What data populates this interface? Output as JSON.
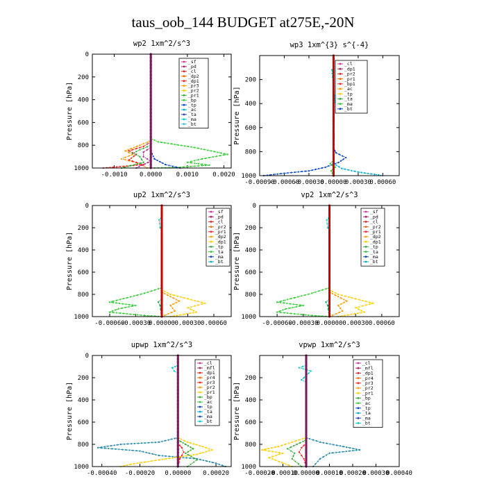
{
  "page_title": "taus_oob_144  BUDGET at275E,-20N",
  "chart_data": [
    {
      "type": "line",
      "title": "wp2  1xm^2/s^3",
      "ylabel": "Pressure [hPa]",
      "xlim": [
        -0.0016,
        0.0022
      ],
      "ylim": [
        1000,
        0
      ],
      "xticks": [
        -0.001,
        0.0,
        0.001,
        0.002
      ],
      "xticklabels": [
        "-0.0010",
        "0.0000",
        "0.0010",
        "0.0020"
      ],
      "yticks": [
        0,
        200,
        400,
        600,
        800,
        1000
      ],
      "legend": [
        "_sf",
        "_pd",
        "_cl",
        "_dp2",
        "_dp1",
        "_pr3",
        "_pr2",
        "_pr1",
        "_bp",
        "_tp",
        "_ac",
        "_ta",
        "_ma",
        "_bt"
      ],
      "series": [
        {
          "name": "_bp",
          "color": "#33cc33",
          "x": [
            0,
            0,
            0.0002,
            0.0012,
            0.0021,
            0.0014,
            0.001,
            0.0016,
            0.0007,
            0.0001
          ],
          "y": [
            0,
            740,
            770,
            820,
            880,
            920,
            950,
            975,
            995,
            1000
          ]
        },
        {
          "name": "_dp2",
          "color": "#ff9900",
          "x": [
            0,
            0,
            -0.0003,
            -0.0007,
            -0.0005,
            -0.0008,
            -0.0003,
            -0.0001
          ],
          "y": [
            0,
            760,
            800,
            850,
            880,
            920,
            960,
            1000
          ]
        },
        {
          "name": "_dp1",
          "color": "#ff2222",
          "x": [
            0,
            0,
            -0.0002,
            -0.0006,
            -0.0004,
            -0.0006,
            -0.0002,
            -0.0013
          ],
          "y": [
            0,
            770,
            810,
            850,
            880,
            930,
            970,
            1000
          ]
        },
        {
          "name": "_pr1",
          "color": "#33aa33",
          "x": [
            0,
            0,
            -0.0003,
            -0.0005,
            -0.0003,
            -0.0002,
            -0.0008
          ],
          "y": [
            0,
            800,
            840,
            870,
            900,
            950,
            1000
          ]
        },
        {
          "name": "_cl",
          "color": "#aa3399",
          "x": [
            0,
            0,
            -0.0002,
            -0.0002,
            0,
            -0.0004
          ],
          "y": [
            0,
            820,
            860,
            900,
            940,
            1000
          ]
        },
        {
          "name": "_tp",
          "color": "#0044cc",
          "x": [
            0,
            0,
            0.0001,
            0.0004,
            0.0008
          ],
          "y": [
            0,
            850,
            920,
            970,
            1000
          ]
        },
        {
          "name": "_bt",
          "color": "#7a1a5a",
          "x": [
            0,
            0
          ],
          "y": [
            0,
            1000
          ]
        }
      ]
    },
    {
      "type": "line",
      "title": "wp3  1xm^{3} s^{-4}",
      "ylabel": "Pressure [hPa]",
      "xlim": [
        -0.0009,
        0.0008
      ],
      "ylim": [
        1000,
        0
      ],
      "xticks": [
        -0.0009,
        -0.0006,
        -0.0003,
        0.0,
        0.0003,
        0.0006
      ],
      "xticklabels": [
        "-0.00090",
        "-0.00060",
        "-0.00030",
        "0.00000",
        "0.00030",
        "0.00060"
      ],
      "yticks": [
        200,
        400,
        600,
        800,
        1000
      ],
      "legend": [
        "_cl",
        "_dp1",
        "_pr2",
        "_pr1",
        "_bp1",
        "_ac",
        "_tp",
        "_ta",
        "_ma",
        "_bt"
      ],
      "series": [
        {
          "name": "_tp",
          "color": "#0044cc",
          "x": [
            0,
            0,
            3e-05,
            0.00015,
            6e-05,
            -0.0001,
            -0.0003,
            -0.0006,
            -0.00085
          ],
          "y": [
            0,
            770,
            810,
            850,
            890,
            930,
            960,
            980,
            1000
          ]
        },
        {
          "name": "_ac",
          "color": "#00aacc",
          "x": [
            0,
            0,
            0.0001,
            0.0003,
            0.0005,
            0.0006
          ],
          "y": [
            0,
            900,
            940,
            970,
            990,
            1000
          ]
        },
        {
          "name": "_bp1",
          "color": "#33cc33",
          "x": [
            0,
            0,
            -4e-05,
            2e-05,
            -3e-05,
            0
          ],
          "y": [
            0,
            870,
            900,
            930,
            960,
            1000
          ]
        },
        {
          "name": "_ma",
          "color": "#00cccc",
          "x": [
            0,
            0,
            -2e-05,
            2e-05,
            0
          ],
          "y": [
            100,
            110,
            120,
            390,
            400
          ]
        },
        {
          "name": "_bt",
          "color": "#cc0000",
          "x": [
            0,
            0
          ],
          "y": [
            0,
            1000
          ]
        }
      ]
    },
    {
      "type": "line",
      "title": "up2  1xm^2/s^3",
      "ylabel": "Pressure [hPa]",
      "xlim": [
        -0.0008,
        0.0008
      ],
      "ylim": [
        1000,
        0
      ],
      "xticks": [
        -0.0006,
        -0.0003,
        0.0,
        0.0003,
        0.0006
      ],
      "xticklabels": [
        "-0.00060",
        "-0.00030",
        "0.00000",
        "0.00030",
        "0.00060"
      ],
      "yticks": [
        0,
        200,
        400,
        600,
        800,
        1000
      ],
      "legend": [
        "_sf",
        "_pd",
        "_cl",
        "_pr2",
        "_pr1",
        "_dp2",
        "_dp1",
        "_tp",
        "_ta",
        "_ma",
        "_bt"
      ],
      "series": [
        {
          "name": "_dp2",
          "color": "#33cc33",
          "x": [
            0,
            0,
            -0.0002,
            -0.0004,
            -0.0006,
            -0.0003,
            -0.0005,
            -0.0006,
            -0.0002,
            0
          ],
          "y": [
            0,
            740,
            790,
            830,
            870,
            900,
            930,
            960,
            990,
            1000
          ]
        },
        {
          "name": "_pr2",
          "color": "#ffcc00",
          "x": [
            0,
            0,
            0.0001,
            0.0003,
            0.0005,
            0.0003,
            0.0004,
            0.0001
          ],
          "y": [
            0,
            760,
            800,
            840,
            880,
            920,
            960,
            1000
          ]
        },
        {
          "name": "_pr1",
          "color": "#ff9900",
          "x": [
            0,
            0,
            0.0001,
            0.0002,
            0.0001,
            0.00015,
            0
          ],
          "y": [
            0,
            780,
            820,
            860,
            900,
            950,
            1000
          ]
        },
        {
          "name": "_cl",
          "color": "#00aa66",
          "x": [
            0,
            0,
            -4e-05,
            -2e-05,
            0
          ],
          "y": [
            0,
            840,
            870,
            900,
            1000
          ]
        },
        {
          "name": "_ma",
          "color": "#00cccc",
          "x": [
            0,
            0,
            -3e-05,
            -2e-05,
            0
          ],
          "y": [
            0,
            100,
            130,
            200,
            220
          ]
        },
        {
          "name": "_bt",
          "color": "#cc0000",
          "x": [
            0,
            0
          ],
          "y": [
            0,
            1000
          ]
        }
      ]
    },
    {
      "type": "line",
      "title": "vp2  1xm^2/s^3",
      "ylabel": "Pressure [hPa]",
      "xlim": [
        -0.0008,
        0.0008
      ],
      "ylim": [
        1000,
        0
      ],
      "xticks": [
        -0.0006,
        -0.0003,
        0.0,
        0.0003,
        0.0006
      ],
      "xticklabels": [
        "-0.00060",
        "-0.00030",
        "0.00000",
        "0.00030",
        "0.00060"
      ],
      "yticks": [
        0,
        200,
        400,
        600,
        800,
        1000
      ],
      "legend": [
        "_sf",
        "_pd",
        "_cl",
        "_pr2",
        "_pr1",
        "_dp2",
        "_dp1",
        "_tp",
        "_ta",
        "_ma",
        "_bt"
      ],
      "series": [
        {
          "name": "_dp2",
          "color": "#33cc33",
          "x": [
            0,
            0,
            -0.0002,
            -0.0004,
            -0.0006,
            -0.0003,
            -0.0005,
            -0.0006,
            -0.0002,
            0
          ],
          "y": [
            0,
            740,
            790,
            830,
            870,
            900,
            930,
            960,
            990,
            1000
          ]
        },
        {
          "name": "_pr2",
          "color": "#ffcc00",
          "x": [
            0,
            0,
            0.0001,
            0.0003,
            0.0005,
            0.0003,
            0.0004,
            0.0001
          ],
          "y": [
            0,
            760,
            800,
            840,
            880,
            920,
            960,
            1000
          ]
        },
        {
          "name": "_pr1",
          "color": "#ff9900",
          "x": [
            0,
            0,
            0.0001,
            0.0002,
            0.0001,
            0.00015,
            0
          ],
          "y": [
            0,
            780,
            820,
            860,
            900,
            950,
            1000
          ]
        },
        {
          "name": "_cl",
          "color": "#00aa66",
          "x": [
            0,
            0,
            -4e-05,
            -2e-05,
            0
          ],
          "y": [
            0,
            840,
            870,
            900,
            1000
          ]
        },
        {
          "name": "_ma",
          "color": "#00cccc",
          "x": [
            0,
            0,
            -3e-05,
            -2e-05,
            0
          ],
          "y": [
            0,
            100,
            130,
            200,
            220
          ]
        },
        {
          "name": "_bt",
          "color": "#cc0000",
          "x": [
            0,
            0
          ],
          "y": [
            0,
            1000
          ]
        }
      ]
    },
    {
      "type": "line",
      "title": "upwp  1xm^2/s^3",
      "ylabel": "Pressure [hPa]",
      "xlim": [
        -0.00045,
        0.00028
      ],
      "ylim": [
        1000,
        0
      ],
      "xticks": [
        -0.0004,
        -0.0002,
        0.0,
        0.0002
      ],
      "xticklabels": [
        "-0.00040",
        "-0.00020",
        "0.00000",
        "0.00020"
      ],
      "yticks": [
        0,
        200,
        400,
        600,
        800,
        1000
      ],
      "legend": [
        "_cl",
        "_mfl",
        "_dp1",
        "_pr4",
        "_pr3",
        "_pr2",
        "_pr1",
        "_bp",
        "_ac",
        "_tp",
        "_ta",
        "_ma",
        "_bt"
      ],
      "series": [
        {
          "name": "_tp",
          "color": "#2288aa",
          "x": [
            0,
            0,
            -0.0001,
            -0.0003,
            -0.00042,
            -0.0002,
            -0.0001,
            0.0001,
            0.0002,
            0.00025
          ],
          "y": [
            0,
            740,
            780,
            800,
            830,
            860,
            900,
            930,
            970,
            1000
          ]
        },
        {
          "name": "_pr2",
          "color": "#ffcc00",
          "x": [
            0,
            0,
            5e-05,
            0.00013,
            0.00018,
            0.0001,
            -0.0001,
            -0.00025,
            -0.0003
          ],
          "y": [
            0,
            740,
            780,
            820,
            850,
            890,
            940,
            980,
            1000
          ]
        },
        {
          "name": "_bp",
          "color": "#33aa33",
          "x": [
            0,
            0,
            4e-05,
            8e-05,
            4e-05,
            0.0001,
            5e-05
          ],
          "y": [
            0,
            760,
            800,
            840,
            880,
            940,
            1000
          ]
        },
        {
          "name": "_dp1",
          "color": "#ff2222",
          "x": [
            0,
            0,
            2e-05,
            3e-05,
            1e-05,
            0
          ],
          "y": [
            0,
            790,
            830,
            870,
            930,
            1000
          ]
        },
        {
          "name": "_ma",
          "color": "#00cccc",
          "x": [
            0,
            0,
            -3e-05,
            -2e-05,
            0
          ],
          "y": [
            0,
            90,
            110,
            140,
            160
          ]
        },
        {
          "name": "_bt",
          "color": "#7a1a5a",
          "x": [
            0,
            0
          ],
          "y": [
            0,
            1000
          ]
        }
      ]
    },
    {
      "type": "line",
      "title": "vpwp  1xm^2/s^3",
      "ylabel": "Pressure [hPa]",
      "xlim": [
        -0.0002,
        0.0004
      ],
      "ylim": [
        1000,
        0
      ],
      "xticks": [
        -0.0002,
        -0.0001,
        0.0,
        0.0001,
        0.0002,
        0.0003,
        0.0004
      ],
      "xticklabels": [
        "-0.00020",
        "-0.00010",
        "0.00000",
        "0.00010",
        "0.00020",
        "0.00030",
        "0.00040"
      ],
      "yticks": [
        200,
        400,
        600,
        800,
        1000
      ],
      "legend": [
        "_cl",
        "_mfl",
        "_dp1",
        "_pr4",
        "_pr3",
        "_pr2",
        "_pr1",
        "_bp",
        "_ac",
        "_tp",
        "_ta",
        "_ma",
        "_bt"
      ],
      "series": [
        {
          "name": "_tp",
          "color": "#2288aa",
          "x": [
            0,
            0,
            6e-05,
            0.00016,
            0.00023,
            0.0001,
            6e-05,
            3e-05
          ],
          "y": [
            0,
            740,
            780,
            820,
            850,
            880,
            930,
            1000
          ]
        },
        {
          "name": "_pr2",
          "color": "#ffcc00",
          "x": [
            0,
            0,
            -6e-05,
            -0.00012,
            -0.00019,
            -0.0001,
            -0.00016,
            -6e-05
          ],
          "y": [
            0,
            740,
            780,
            820,
            850,
            880,
            920,
            1000
          ]
        },
        {
          "name": "_bp",
          "color": "#33aa33",
          "x": [
            0,
            0,
            -4e-05,
            -8e-05,
            -5e-05,
            -6e-05,
            -2e-05
          ],
          "y": [
            0,
            760,
            800,
            840,
            880,
            930,
            1000
          ]
        },
        {
          "name": "_dp1",
          "color": "#ff2222",
          "x": [
            0,
            0,
            -2e-05,
            -3e-05,
            -1e-05,
            0
          ],
          "y": [
            0,
            790,
            830,
            870,
            930,
            1000
          ]
        },
        {
          "name": "_ma",
          "color": "#00cccc",
          "x": [
            0,
            0,
            -3e-05,
            2e-05,
            -2e-05,
            0
          ],
          "y": [
            0,
            90,
            110,
            140,
            220,
            240
          ]
        },
        {
          "name": "_bt",
          "color": "#7a1a5a",
          "x": [
            0,
            0
          ],
          "y": [
            0,
            1000
          ]
        }
      ]
    }
  ]
}
